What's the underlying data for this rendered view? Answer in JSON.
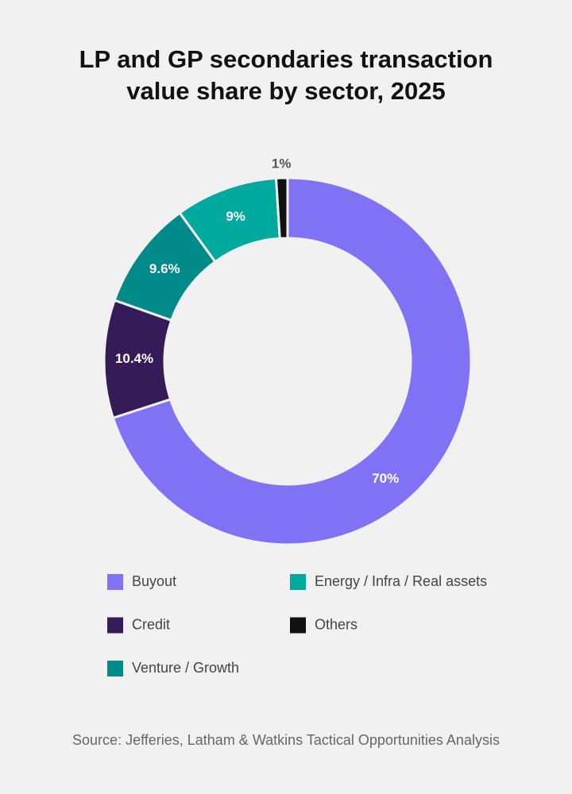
{
  "chart_data": {
    "type": "donut",
    "title": "LP and GP secondaries transaction value share by sector, 2025",
    "categories": [
      "Buyout",
      "Credit",
      "Venture / Growth",
      "Energy / Infra / Real assets",
      "Others"
    ],
    "values": [
      70,
      10.4,
      9.6,
      9,
      1
    ],
    "value_labels": [
      "70%",
      "10.4%",
      "9.6%",
      "9%",
      "1%"
    ],
    "colors": [
      "#7f72f5",
      "#351c58",
      "#008a8a",
      "#00a99d",
      "#111111"
    ],
    "source": "Source: Jefferies, Latham & Watkins Tactical Opportunities Analysis"
  }
}
